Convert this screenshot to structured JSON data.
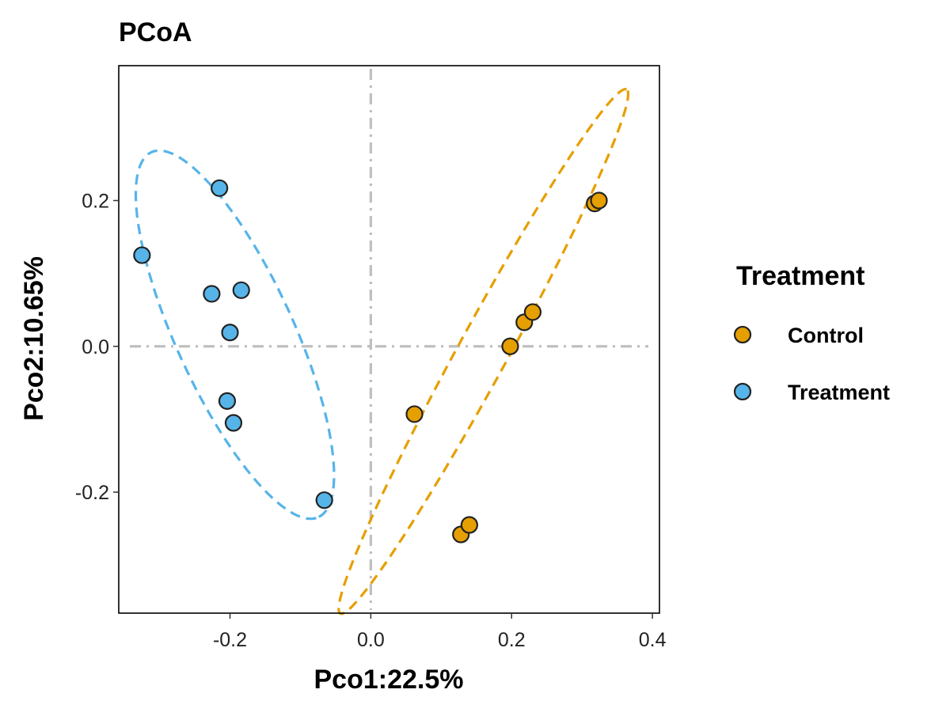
{
  "chart_data": {
    "type": "scatter",
    "title": "PCoA",
    "xlabel": "Pco1:22.5%",
    "ylabel": "Pco2:10.65%",
    "xlim": [
      -0.358,
      0.41
    ],
    "ylim": [
      -0.366,
      0.385
    ],
    "x_ticks": [
      -0.2,
      0.0,
      0.2,
      0.4
    ],
    "x_tick_labels": [
      "-0.2",
      "0.0",
      "0.2",
      "0.4"
    ],
    "y_ticks": [
      -0.2,
      0.0,
      0.2
    ],
    "y_tick_labels": [
      "-0.2",
      "0.0",
      "0.2"
    ],
    "reference_lines": {
      "x": 0,
      "y": 0,
      "style": "dash-dot",
      "color": "#bfbfbf"
    },
    "grid": false,
    "legend": {
      "title": "Treatment",
      "placement": "right"
    },
    "series": [
      {
        "name": "Control",
        "color": "#E69F00",
        "points": [
          {
            "x": 0.062,
            "y": -0.093
          },
          {
            "x": 0.128,
            "y": -0.258
          },
          {
            "x": 0.14,
            "y": -0.245
          },
          {
            "x": 0.198,
            "y": 0.0
          },
          {
            "x": 0.218,
            "y": 0.033
          },
          {
            "x": 0.23,
            "y": 0.047
          },
          {
            "x": 0.318,
            "y": 0.196
          },
          {
            "x": 0.324,
            "y": 0.2
          }
        ],
        "ellipse": {
          "cx": 0.16,
          "cy": -0.007,
          "rx": 0.413,
          "ry": 0.035,
          "angle_deg": 60.5
        }
      },
      {
        "name": "Treatment",
        "color": "#56B4E9",
        "points": [
          {
            "x": -0.325,
            "y": 0.125
          },
          {
            "x": -0.215,
            "y": 0.217
          },
          {
            "x": -0.226,
            "y": 0.072
          },
          {
            "x": -0.184,
            "y": 0.077
          },
          {
            "x": -0.2,
            "y": 0.019
          },
          {
            "x": -0.204,
            "y": -0.075
          },
          {
            "x": -0.195,
            "y": -0.105
          },
          {
            "x": -0.066,
            "y": -0.211
          }
        ],
        "ellipse": {
          "cx": -0.193,
          "cy": 0.016,
          "rx": 0.277,
          "ry": 0.083,
          "angle_deg": -64.5
        }
      }
    ]
  }
}
